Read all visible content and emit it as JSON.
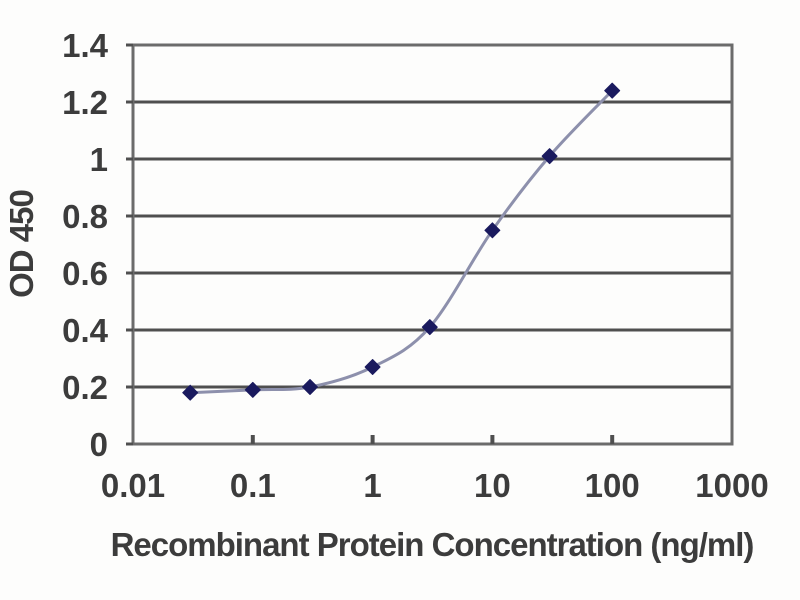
{
  "chart_data": {
    "type": "line",
    "title": "",
    "xlabel": "Recombinant Protein Concentration (ng/ml)",
    "ylabel": "OD 450",
    "x_scale": "log",
    "xlim": [
      0.01,
      1000
    ],
    "ylim": [
      0,
      1.4
    ],
    "x_ticks": [
      0.01,
      0.1,
      1,
      10,
      100,
      1000
    ],
    "x_tick_labels": [
      "0.01",
      "0.1",
      "1",
      "10",
      "100",
      "1000"
    ],
    "y_ticks": [
      0,
      0.2,
      0.4,
      0.6,
      0.8,
      1,
      1.2,
      1.4
    ],
    "y_tick_labels": [
      "0",
      "0.2",
      "0.4",
      "0.6",
      "0.8",
      "1",
      "1.2",
      "1.4"
    ],
    "grid": "horizontal",
    "legend": "none",
    "series": [
      {
        "name": "OD 450 vs concentration",
        "marker": "diamond",
        "smoothed": true,
        "x": [
          0.03,
          0.1,
          0.3,
          1,
          3,
          10,
          30,
          100
        ],
        "y": [
          0.18,
          0.19,
          0.2,
          0.27,
          0.41,
          0.75,
          1.01,
          1.24
        ]
      }
    ],
    "colors": {
      "background": "#fdfdfc",
      "grid": "#4f4f4f",
      "frame": "#6b6b6b",
      "text": "#3c3c3c",
      "line": "#8d90ac",
      "marker": "#1a1a5e"
    }
  }
}
